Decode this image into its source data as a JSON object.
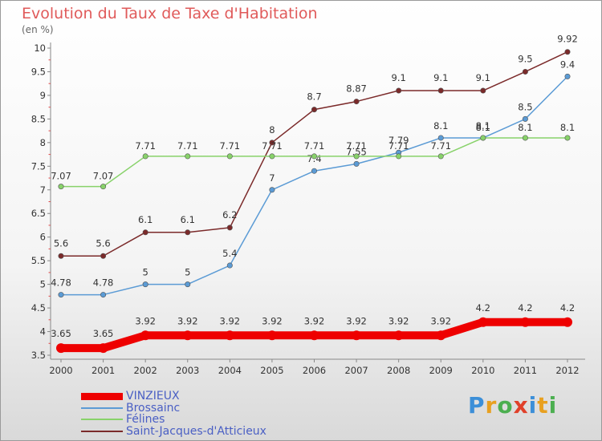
{
  "chart_data": {
    "type": "line",
    "title": "Evolution du Taux de Taxe d'Habitation",
    "ylabel": "(en %)",
    "xlabel": "",
    "x": [
      "2000",
      "2001",
      "2002",
      "2003",
      "2004",
      "2005",
      "2006",
      "2007",
      "2008",
      "2009",
      "2010",
      "2011",
      "2012"
    ],
    "yticks": [
      "3.5",
      "4",
      "4.5",
      "5",
      "5.5",
      "6",
      "6.5",
      "7",
      "7.5",
      "8",
      "8.5",
      "9",
      "9.5",
      "10"
    ],
    "ylim": [
      3.5,
      10
    ],
    "grid": false,
    "legend_position": "bottom-left",
    "series": [
      {
        "name": "VINZIEUX",
        "color": "#ee0000",
        "values": [
          3.65,
          3.65,
          3.92,
          3.92,
          3.92,
          3.92,
          3.92,
          3.92,
          3.92,
          3.92,
          4.2,
          4.2,
          4.2
        ],
        "labels": [
          "3.65",
          "3.65",
          "3.92",
          "3.92",
          "3.92",
          "3.92",
          "3.92",
          "3.92",
          "3.92",
          "3.92",
          "4.2",
          "4.2",
          "4.2"
        ]
      },
      {
        "name": "Brossainc",
        "color": "#5b9bd5",
        "values": [
          4.78,
          4.78,
          5,
          5,
          5.4,
          7,
          7.4,
          7.55,
          7.79,
          8.1,
          8.1,
          8.5,
          9.4
        ],
        "labels": [
          "4.78",
          "4.78",
          "5",
          "5",
          "5.4",
          "7",
          "7.4",
          "7.55",
          "7.79",
          "8.1",
          "8.1",
          "8.5",
          "9.4"
        ]
      },
      {
        "name": "Félines",
        "color": "#88d26a",
        "values": [
          7.07,
          7.07,
          7.71,
          7.71,
          7.71,
          7.71,
          7.71,
          7.71,
          7.71,
          7.71,
          8.1,
          8.1,
          8.1
        ],
        "labels": [
          "7.07",
          "7.07",
          "7.71",
          "7.71",
          "7.71",
          "7.71",
          "7.71",
          "7.71",
          "7.71",
          "7.71",
          "8.1",
          "8.1",
          "8.1"
        ]
      },
      {
        "name": "Saint-Jacques-d'Atticieux",
        "color": "#7b2a2a",
        "values": [
          5.6,
          5.6,
          6.1,
          6.1,
          6.2,
          8,
          8.7,
          8.87,
          9.1,
          9.1,
          9.1,
          9.5,
          9.92
        ],
        "labels": [
          "5.6",
          "5.6",
          "6.1",
          "6.1",
          "6.2",
          "8",
          "8.7",
          "8.87",
          "9.1",
          "9.1",
          "9.1",
          "9.5",
          "9.92"
        ]
      }
    ]
  },
  "brand": {
    "letters": [
      "P",
      "r",
      "o",
      "x",
      "i",
      "t",
      "i"
    ],
    "colors": [
      "#3c8fd8",
      "#e8a020",
      "#4caf50",
      "#e0402a",
      "#3c8fd8",
      "#e8a020",
      "#4caf50"
    ]
  }
}
